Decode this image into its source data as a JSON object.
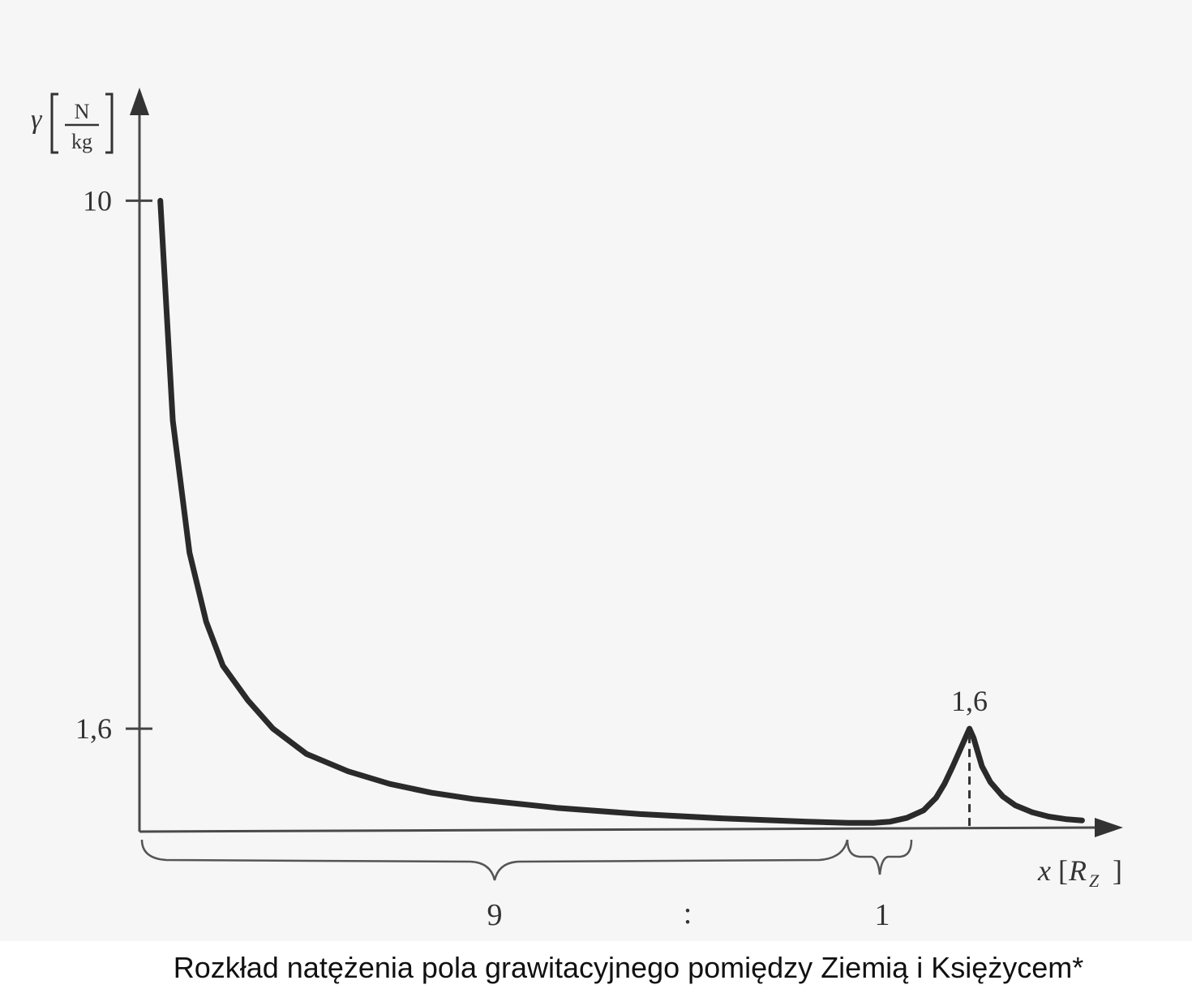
{
  "caption": "Rozkład natężenia pola grawitacyjnego pomiędzy Ziemią i Księżycem*",
  "chart_data": {
    "type": "line",
    "ylabel_symbol": "γ",
    "ylabel_unit_num": "N",
    "ylabel_unit_den": "kg",
    "xlabel_symbol": "x",
    "xlabel_unit": "R",
    "xlabel_unit_sub": "Z",
    "yticks": [
      {
        "value": 10,
        "label": "10"
      },
      {
        "value": 1.6,
        "label": "1,6"
      }
    ],
    "peak_label": "1,6",
    "ratio": {
      "left": "9",
      "separator": ":",
      "right": "1"
    },
    "xlim": [
      0,
      11.5
    ],
    "ylim": [
      0,
      11.8
    ],
    "series": [
      {
        "x": [
          0.25,
          0.4,
          0.6,
          0.8,
          1.0,
          1.3,
          1.6,
          2.0,
          2.5,
          3.0,
          3.5,
          4.0,
          5.0,
          6.0,
          7.0,
          8.0,
          8.5,
          8.8,
          9.0,
          9.2,
          9.4,
          9.55,
          9.65,
          9.75,
          9.85,
          9.95,
          10.0,
          10.1,
          10.2,
          10.35,
          10.5,
          10.7,
          10.9,
          11.1,
          11.3
        ],
        "y": [
          10.0,
          6.5,
          4.4,
          3.3,
          2.6,
          2.05,
          1.6,
          1.2,
          0.92,
          0.72,
          0.58,
          0.48,
          0.34,
          0.24,
          0.17,
          0.12,
          0.1,
          0.1,
          0.12,
          0.18,
          0.3,
          0.5,
          0.72,
          1.0,
          1.3,
          1.6,
          1.45,
          1.0,
          0.75,
          0.52,
          0.38,
          0.27,
          0.2,
          0.16,
          0.14
        ]
      }
    ],
    "peak": {
      "x": 9.95,
      "y": 1.6
    }
  }
}
